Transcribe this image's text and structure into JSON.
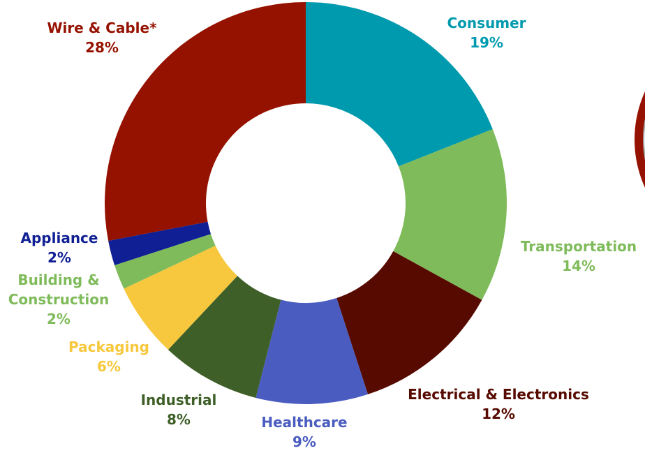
{
  "chart_data": {
    "type": "pie",
    "donut": true,
    "categories": [
      "Consumer",
      "Transportation",
      "Electrical & Electronics",
      "Healthcare",
      "Industrial",
      "Packaging",
      "Building &\nConstruction",
      "Appliance",
      "Wire & Cable*"
    ],
    "values": [
      19,
      14,
      12,
      9,
      8,
      6,
      2,
      2,
      28
    ],
    "value_labels": [
      "19%",
      "14%",
      "12%",
      "9%",
      "8%",
      "6%",
      "2%",
      "2%",
      "28%"
    ],
    "colors": [
      "#009aae",
      "#7fbb5b",
      "#560a00",
      "#4a5cc0",
      "#3e5f28",
      "#f7c83d",
      "#7fbb5b",
      "#101f94",
      "#951200"
    ],
    "legend": "none",
    "title": ""
  },
  "decor": {
    "partial_ring_colors": [
      "#951200",
      "#a8a8a8"
    ]
  }
}
